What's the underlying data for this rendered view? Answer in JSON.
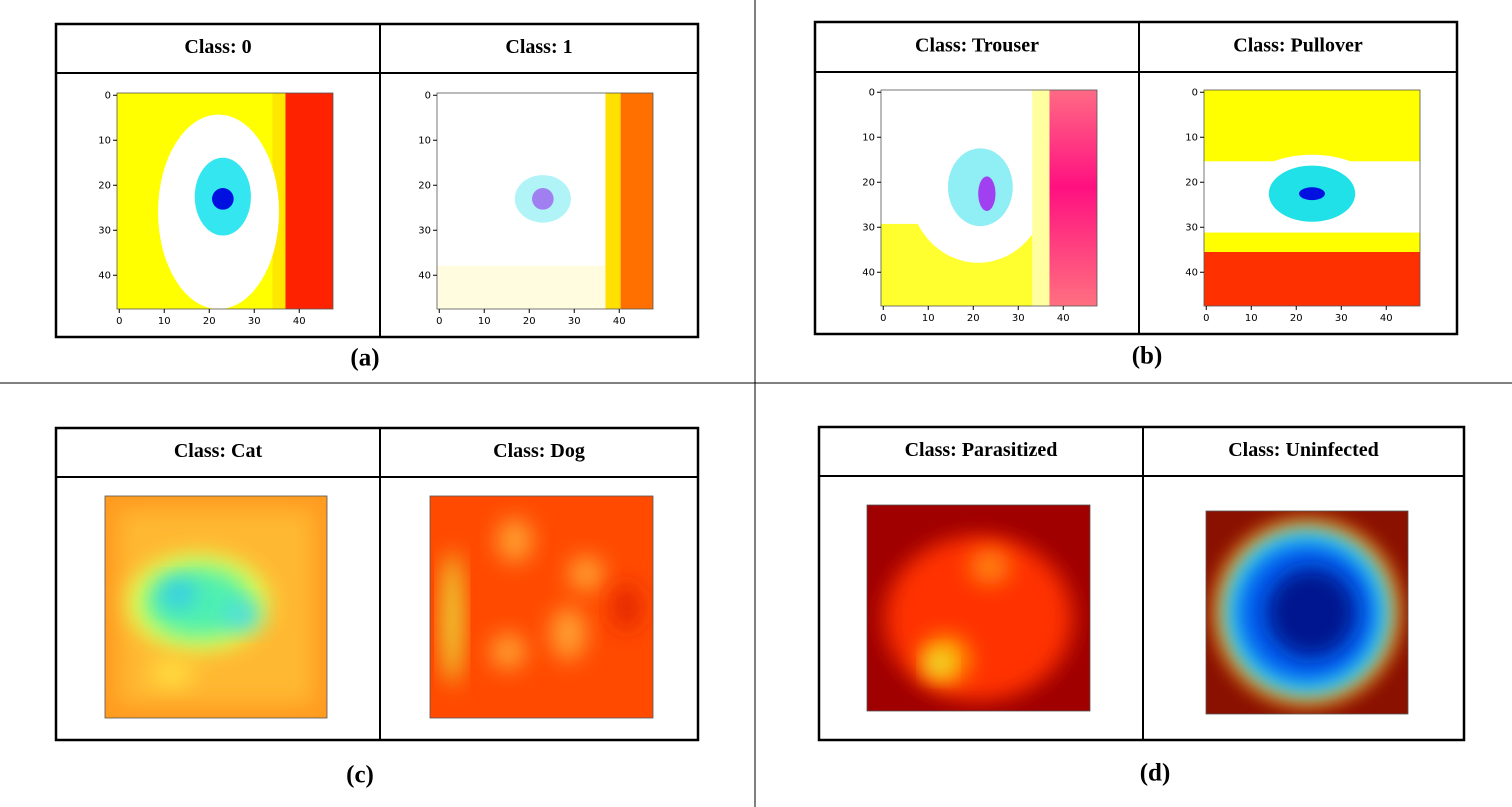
{
  "panels": [
    {
      "label": "(a)",
      "cells": [
        {
          "title": "Class: 0",
          "xticks": [
            0,
            10,
            20,
            30,
            40
          ],
          "yticks": [
            0,
            10,
            20,
            30,
            40
          ]
        },
        {
          "title": "Class: 1",
          "xticks": [
            0,
            10,
            20,
            30,
            40
          ],
          "yticks": [
            0,
            10,
            20,
            30,
            40
          ]
        }
      ]
    },
    {
      "label": "(b)",
      "cells": [
        {
          "title": "Class: Trouser",
          "xticks": [
            0,
            10,
            20,
            30,
            40
          ],
          "yticks": [
            0,
            10,
            20,
            30,
            40
          ]
        },
        {
          "title": "Class: Pullover",
          "xticks": [
            0,
            10,
            20,
            30,
            40
          ],
          "yticks": [
            0,
            10,
            20,
            30,
            40
          ]
        }
      ]
    },
    {
      "label": "(c)",
      "cells": [
        {
          "title": "Class: Cat"
        },
        {
          "title": "Class: Dog"
        }
      ]
    },
    {
      "label": "(d)",
      "cells": [
        {
          "title": "Class: Parasitized"
        },
        {
          "title": "Class: Uninfected"
        }
      ]
    }
  ]
}
